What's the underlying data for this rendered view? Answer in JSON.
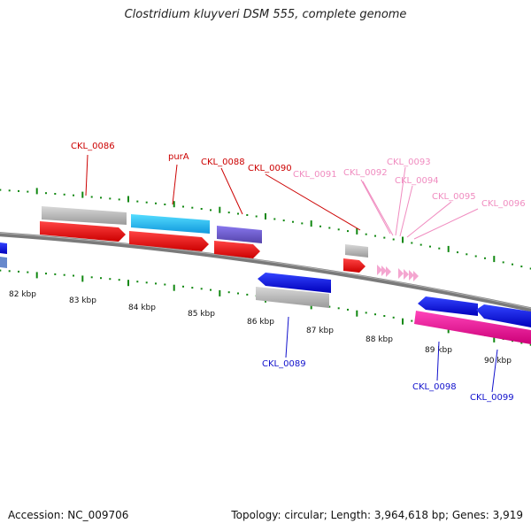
{
  "title": "Clostridium kluyveri DSM 555, complete genome",
  "footer": {
    "accession": "Accession: NC_009706",
    "summary": "Topology: circular; Length: 3,964,618 bp; Genes: 3,919"
  },
  "scale": {
    "labels": [
      "82 kbp",
      "83 kbp",
      "84 kbp",
      "85 kbp",
      "86 kbp",
      "87 kbp",
      "88 kbp",
      "89 kbp",
      "90 kbp"
    ]
  },
  "forward_labels": [
    {
      "text": "CKL_0086",
      "color": "#cc0000"
    },
    {
      "text": "purA",
      "color": "#cc0000"
    },
    {
      "text": "CKL_0088",
      "color": "#cc0000"
    },
    {
      "text": "CKL_0090",
      "color": "#cc0000"
    },
    {
      "text": "CKL_0091",
      "color": "#f08cc0"
    },
    {
      "text": "CKL_0092",
      "color": "#f08cc0"
    },
    {
      "text": "CKL_0093",
      "color": "#f08cc0"
    },
    {
      "text": "CKL_0094",
      "color": "#f08cc0"
    },
    {
      "text": "CKL_0095",
      "color": "#f08cc0"
    },
    {
      "text": "CKL_0096",
      "color": "#f08cc0"
    }
  ],
  "reverse_labels": [
    {
      "text": "CKL_0089",
      "color": "#1010cc"
    },
    {
      "text": "CKL_0098",
      "color": "#1010cc"
    },
    {
      "text": "CKL_0099",
      "color": "#1010cc"
    }
  ],
  "colors": {
    "cds": "#ee1111",
    "gene": "#b8b8b8",
    "reverse_cds": "#1111dd",
    "purA_feature": "#22bbee",
    "ckl0088_feature": "#6655cc",
    "reverse_pink": "#ee1199",
    "trna": "#f4a6d0",
    "ticks": "#118811",
    "backbone": "#808080"
  }
}
